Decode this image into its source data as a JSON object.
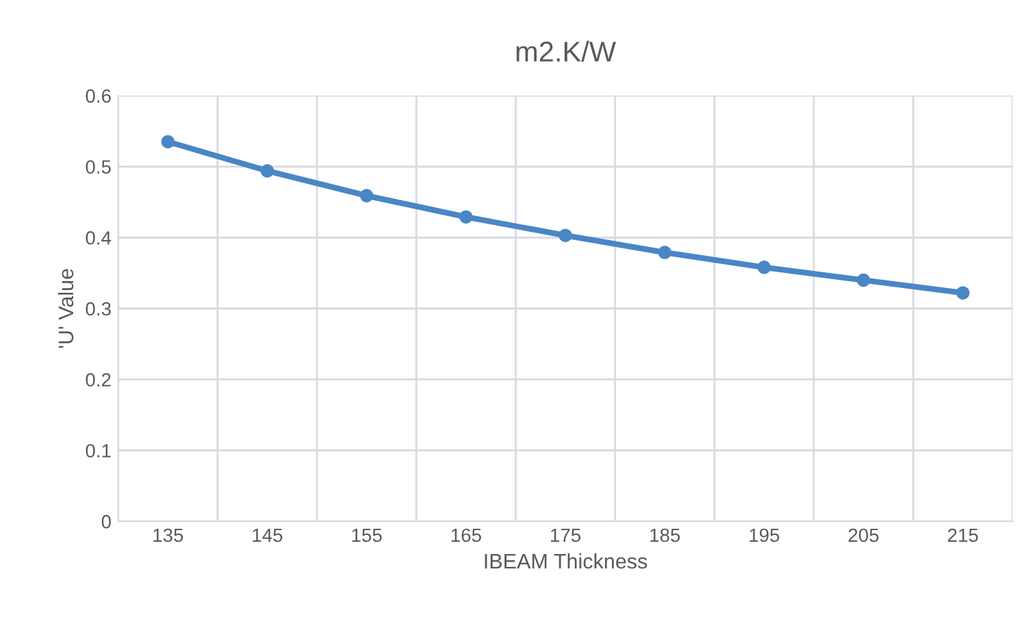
{
  "chart_data": {
    "type": "line",
    "title": "m2.K/W",
    "xlabel": "IBEAM Thickness",
    "ylabel": "'U' Value",
    "categories": [
      "135",
      "145",
      "155",
      "165",
      "175",
      "185",
      "195",
      "205",
      "215"
    ],
    "series": [
      {
        "color": "#4a86c5",
        "values": [
          0.535,
          0.494,
          0.459,
          0.429,
          0.403,
          0.379,
          0.358,
          0.34,
          0.322
        ]
      }
    ],
    "ylim": [
      0,
      0.6
    ],
    "yticks": [
      {
        "value": 0,
        "label": "0"
      },
      0.1,
      0.2,
      0.3,
      0.4,
      0.5,
      0.6
    ],
    "grid": true,
    "marker": "circle",
    "line_style": "solid"
  }
}
